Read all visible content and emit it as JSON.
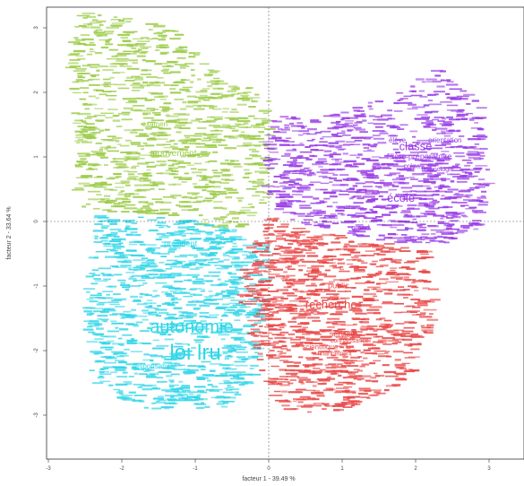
{
  "chart_data": {
    "type": "scatter",
    "title": "",
    "xlabel": "facteur 1 - 39.49 %",
    "ylabel": "facteur 2 - 33.64 %",
    "xlim": [
      -3,
      3.3
    ],
    "ylim": [
      -3.4,
      3.2
    ],
    "x_ticks": [
      -3,
      -2,
      -1,
      0,
      1,
      2,
      3
    ],
    "y_ticks": [
      -3,
      -2,
      -1,
      0,
      1,
      2,
      3
    ],
    "colors": {
      "class_1": "#9ccc4a",
      "class_2": "#9a3ee6",
      "class_3": "#33d6e8",
      "class_4": "#ea4848"
    },
    "labels": [
      {
        "text": "mouvement",
        "x": -1.3,
        "y": 1.05,
        "size": 10,
        "cls": "class_1"
      },
      {
        "text": "examen",
        "x": -1.55,
        "y": 1.5,
        "size": 8,
        "cls": "class_1"
      },
      {
        "text": "grève",
        "x": -1.1,
        "y": 1.25,
        "size": 7,
        "cls": "class_1"
      },
      {
        "text": "classe",
        "x": 2.0,
        "y": 1.15,
        "size": 13,
        "cls": "class_2"
      },
      {
        "text": "école",
        "x": 1.8,
        "y": 0.35,
        "size": 13,
        "cls": "class_2"
      },
      {
        "text": "filière préparatoire",
        "x": 2.05,
        "y": 1.0,
        "size": 9,
        "cls": "class_2"
      },
      {
        "text": "élève",
        "x": 1.75,
        "y": 1.25,
        "size": 8,
        "cls": "class_2"
      },
      {
        "text": "orientation",
        "x": 2.4,
        "y": 1.25,
        "size": 8,
        "cls": "class_2"
      },
      {
        "text": "technologie",
        "x": 2.3,
        "y": 0.8,
        "size": 7,
        "cls": "class_2"
      },
      {
        "text": "grand",
        "x": 1.25,
        "y": -0.1,
        "size": 8,
        "cls": "class_2"
      },
      {
        "text": "prépa",
        "x": 1.95,
        "y": 0.85,
        "size": 7,
        "cls": "class_2"
      },
      {
        "text": "autonomie",
        "x": -1.05,
        "y": -1.65,
        "size": 20,
        "cls": "class_3"
      },
      {
        "text": "loi lru",
        "x": -1.0,
        "y": -2.05,
        "size": 24,
        "cls": "class_3"
      },
      {
        "text": "président",
        "x": -1.2,
        "y": -0.35,
        "size": 9,
        "cls": "class_3"
      },
      {
        "text": "responsabilité",
        "x": -1.55,
        "y": -2.25,
        "size": 8,
        "cls": "class_3"
      },
      {
        "text": "recherche",
        "x": 0.85,
        "y": -1.3,
        "size": 13,
        "cls": "class_4"
      },
      {
        "text": "public",
        "x": 0.95,
        "y": -1.0,
        "size": 9,
        "cls": "class_4"
      },
      {
        "text": "service",
        "x": 1.0,
        "y": -1.75,
        "size": 9,
        "cls": "class_4"
      },
      {
        "text": "scientifique",
        "x": 0.7,
        "y": -1.95,
        "size": 8,
        "cls": "class_4"
      },
      {
        "text": "financement",
        "x": 0.9,
        "y": -2.05,
        "size": 7,
        "cls": "class_4"
      },
      {
        "text": "connaissance",
        "x": 1.1,
        "y": -1.85,
        "size": 7,
        "cls": "class_4"
      }
    ]
  }
}
